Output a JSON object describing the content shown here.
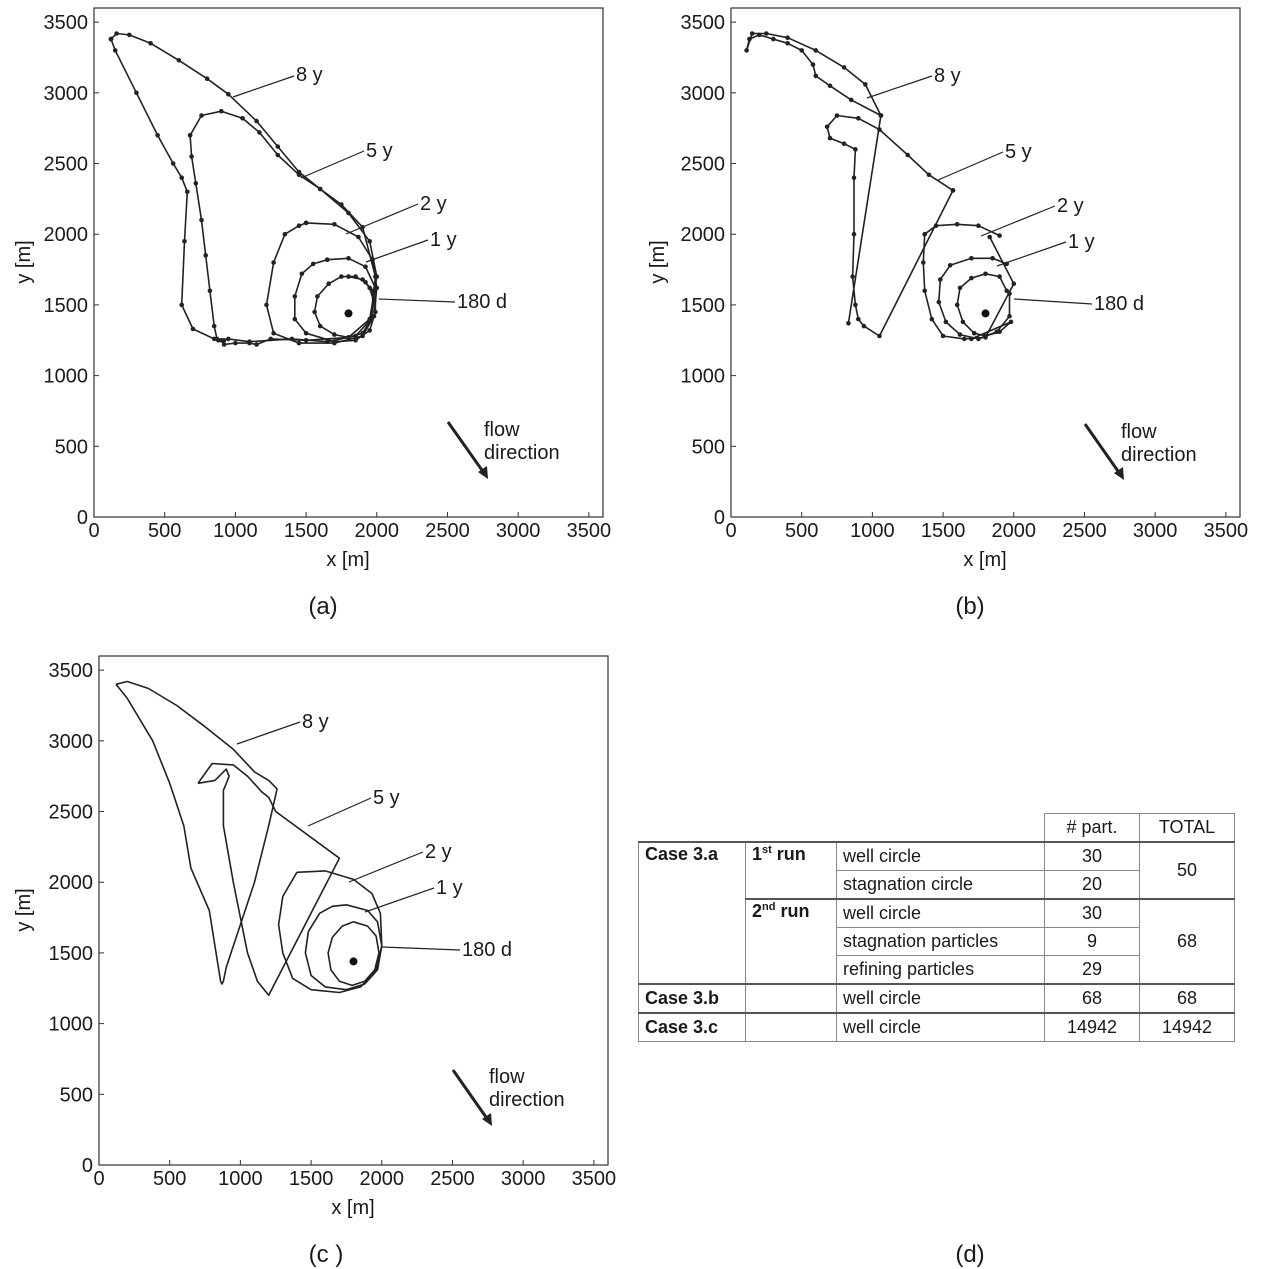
{
  "panels": [
    {
      "id": "a",
      "label": "(a)",
      "xlabel": "x [m]",
      "ylabel": "y [m]",
      "xticks": [
        "0",
        "500",
        "1000",
        "1500",
        "2000",
        "2500",
        "3000",
        "3500"
      ],
      "yticks": [
        "0",
        "500",
        "1000",
        "1500",
        "2000",
        "2500",
        "3000",
        "3500"
      ],
      "flow": [
        "flow",
        "direction"
      ],
      "annotations": [
        "8 y",
        "5 y",
        "2 y",
        "1 y",
        "180 d"
      ]
    },
    {
      "id": "b",
      "label": "(b)",
      "xlabel": "x [m]",
      "ylabel": "y [m]",
      "xticks": [
        "0",
        "500",
        "1000",
        "1500",
        "2000",
        "2500",
        "3000",
        "3500"
      ],
      "yticks": [
        "0",
        "500",
        "1000",
        "1500",
        "2000",
        "2500",
        "3000",
        "3500"
      ],
      "flow": [
        "flow",
        "direction"
      ],
      "annotations": [
        "8 y",
        "5 y",
        "2 y",
        "1 y",
        "180 d"
      ]
    },
    {
      "id": "c",
      "label": "(c )",
      "xlabel": "x [m]",
      "ylabel": "y [m]",
      "xticks": [
        "0",
        "500",
        "1000",
        "1500",
        "2000",
        "2500",
        "3000",
        "3500"
      ],
      "yticks": [
        "0",
        "500",
        "1000",
        "1500",
        "2000",
        "2500",
        "3000",
        "3500"
      ],
      "flow": [
        "flow",
        "direction"
      ],
      "annotations": [
        "8 y",
        "5 y",
        "2 y",
        "1 y",
        "180 d"
      ]
    }
  ],
  "chart_data": [
    {
      "type": "line",
      "panel": "a",
      "xlabel": "x [m]",
      "ylabel": "y [m]",
      "xlim": [
        0,
        3600
      ],
      "ylim": [
        0,
        3600
      ],
      "well": [
        1800,
        1440
      ],
      "series": [
        {
          "name": "180 d",
          "x": [
            1800,
            1900,
            1950,
            1980,
            1960,
            1900,
            1800,
            1700,
            1600,
            1560,
            1580,
            1660,
            1750,
            1850,
            1920,
            1970,
            1980
          ],
          "y": [
            1700,
            1680,
            1620,
            1520,
            1400,
            1300,
            1270,
            1290,
            1350,
            1450,
            1560,
            1650,
            1700,
            1700,
            1660,
            1600,
            1540
          ]
        },
        {
          "name": "1 y",
          "x": [
            1650,
            1800,
            1920,
            1990,
            1990,
            1950,
            1850,
            1700,
            1500,
            1420,
            1420,
            1470,
            1550,
            1650
          ],
          "y": [
            1820,
            1830,
            1770,
            1620,
            1450,
            1320,
            1250,
            1240,
            1300,
            1400,
            1560,
            1720,
            1790,
            1820
          ]
        },
        {
          "name": "2 y",
          "x": [
            1500,
            1700,
            1870,
            1970,
            2000,
            1980,
            1900,
            1700,
            1450,
            1270,
            1220,
            1270,
            1350,
            1450,
            1500
          ],
          "y": [
            2080,
            2070,
            1980,
            1820,
            1620,
            1420,
            1280,
            1230,
            1230,
            1300,
            1500,
            1800,
            2000,
            2060,
            2080
          ]
        },
        {
          "name": "5 y",
          "x": [
            680,
            760,
            900,
            1050,
            1170,
            1300,
            1450,
            1600,
            1750,
            1900,
            1990,
            1960,
            1850,
            1650,
            1400,
            1100,
            950,
            920,
            880,
            870,
            850,
            820,
            790,
            760,
            720,
            690,
            680
          ],
          "y": [
            2700,
            2840,
            2870,
            2820,
            2720,
            2560,
            2420,
            2320,
            2210,
            2050,
            1700,
            1400,
            1280,
            1240,
            1260,
            1240,
            1260,
            1250,
            1250,
            1260,
            1350,
            1600,
            1850,
            2100,
            2360,
            2550,
            2700
          ]
        },
        {
          "name": "8 y",
          "x": [
            120,
            160,
            250,
            400,
            600,
            800,
            950,
            1150,
            1300,
            1450,
            1600,
            1800,
            1950,
            2000,
            1950,
            1800,
            1500,
            1250,
            1150,
            1100,
            1000,
            920,
            900,
            850,
            700,
            620,
            640,
            660,
            620,
            560,
            450,
            300,
            150,
            120
          ],
          "y": [
            3380,
            3420,
            3410,
            3350,
            3230,
            3100,
            2990,
            2800,
            2620,
            2440,
            2320,
            2150,
            1950,
            1700,
            1400,
            1270,
            1250,
            1260,
            1220,
            1230,
            1230,
            1220,
            1250,
            1260,
            1330,
            1500,
            1950,
            2300,
            2400,
            2500,
            2700,
            3000,
            3300,
            3380
          ]
        }
      ]
    },
    {
      "type": "line",
      "panel": "b",
      "xlabel": "x [m]",
      "ylabel": "y [m]",
      "xlim": [
        0,
        3600
      ],
      "ylim": [
        0,
        3600
      ],
      "well": [
        1800,
        1440
      ],
      "series": [
        {
          "name": "180 d",
          "x": [
            1950,
            1900,
            1800,
            1700,
            1620,
            1600,
            1640,
            1720,
            1800,
            1900,
            1980,
            1700
          ],
          "y": [
            1600,
            1700,
            1720,
            1690,
            1620,
            1500,
            1380,
            1300,
            1280,
            1310,
            1380,
            1260
          ]
        },
        {
          "name": "1 y",
          "x": [
            1950,
            1850,
            1700,
            1550,
            1480,
            1470,
            1520,
            1620,
            1750,
            1880,
            1970,
            1970
          ],
          "y": [
            1790,
            1830,
            1830,
            1780,
            1680,
            1520,
            1380,
            1290,
            1260,
            1310,
            1420,
            1580
          ]
        },
        {
          "name": "2 y",
          "x": [
            1900,
            1750,
            1600,
            1450,
            1370,
            1360,
            1370,
            1420,
            1500,
            1650,
            1800,
            2000,
            1830
          ],
          "y": [
            1990,
            2060,
            2070,
            2060,
            2000,
            1800,
            1600,
            1400,
            1280,
            1260,
            1270,
            1650,
            1980
          ]
        },
        {
          "name": "5 y",
          "x": [
            1570,
            1400,
            1250,
            1050,
            900,
            750,
            680,
            700,
            800,
            880,
            870,
            870,
            860,
            880,
            900,
            940,
            1050,
            1570
          ],
          "y": [
            2310,
            2420,
            2560,
            2740,
            2820,
            2840,
            2760,
            2680,
            2640,
            2600,
            2400,
            2000,
            1700,
            1500,
            1400,
            1350,
            1280,
            2310
          ]
        },
        {
          "name": "8 y",
          "x": [
            1060,
            850,
            700,
            600,
            580,
            500,
            400,
            300,
            200,
            130,
            110,
            150,
            250,
            400,
            600,
            800,
            950,
            1060,
            830,
            1060
          ],
          "y": [
            2840,
            2950,
            3050,
            3120,
            3200,
            3300,
            3350,
            3380,
            3410,
            3380,
            3300,
            3420,
            3420,
            3390,
            3300,
            3180,
            3060,
            2840,
            1370,
            2840
          ]
        }
      ]
    },
    {
      "type": "line",
      "panel": "c",
      "xlabel": "x [m]",
      "ylabel": "y [m]",
      "xlim": [
        0,
        3600
      ],
      "ylim": [
        0,
        3600
      ],
      "well": [
        1800,
        1440
      ],
      "series": [
        {
          "name": "180 d",
          "x": [
            1800,
            1900,
            1960,
            1980,
            1950,
            1880,
            1790,
            1700,
            1640,
            1620,
            1650,
            1720,
            1800
          ],
          "y": [
            1720,
            1690,
            1620,
            1500,
            1380,
            1300,
            1270,
            1300,
            1380,
            1500,
            1610,
            1690,
            1720
          ]
        },
        {
          "name": "1 y",
          "x": [
            1750,
            1900,
            1970,
            2000,
            1970,
            1880,
            1750,
            1600,
            1500,
            1460,
            1480,
            1560,
            1650,
            1750
          ],
          "y": [
            1840,
            1800,
            1720,
            1550,
            1380,
            1280,
            1240,
            1260,
            1340,
            1500,
            1650,
            1780,
            1830,
            1840
          ]
        },
        {
          "name": "2 y",
          "x": [
            1400,
            1600,
            1800,
            1930,
            1990,
            2000,
            1960,
            1850,
            1700,
            1500,
            1370,
            1300,
            1270,
            1300,
            1400
          ],
          "y": [
            2070,
            2080,
            2020,
            1920,
            1780,
            1550,
            1380,
            1260,
            1220,
            1240,
            1320,
            1500,
            1700,
            1900,
            2070
          ]
        },
        {
          "name": "5 y",
          "x": [
            700,
            800,
            950,
            1050,
            1150,
            1200,
            1250,
            1700,
            1200,
            1120,
            1050,
            950,
            880,
            880,
            900,
            920,
            900,
            820,
            700
          ],
          "y": [
            2700,
            2840,
            2830,
            2750,
            2640,
            2600,
            2500,
            2170,
            1200,
            1300,
            1500,
            2000,
            2400,
            2650,
            2700,
            2750,
            2800,
            2720,
            2700
          ]
        },
        {
          "name": "8 y",
          "x": [
            120,
            200,
            350,
            550,
            750,
            950,
            1100,
            1200,
            1260,
            1200,
            1100,
            1000,
            900,
            880,
            870,
            860,
            780,
            650,
            600,
            500,
            380,
            200,
            120
          ],
          "y": [
            3400,
            3420,
            3370,
            3250,
            3100,
            2940,
            2780,
            2720,
            2660,
            2400,
            2000,
            1700,
            1400,
            1300,
            1280,
            1300,
            1800,
            2100,
            2400,
            2700,
            3000,
            3300,
            3400
          ]
        }
      ]
    }
  ],
  "table": {
    "label": "(d)",
    "header": {
      "part": "# part.",
      "total": "TOTAL"
    },
    "case_a": "Case 3.a",
    "case_b": "Case 3.b",
    "case_c": "Case 3.c",
    "run1": {
      "n": "1",
      "sup": "st",
      "word": " run"
    },
    "run2": {
      "n": "2",
      "sup": "nd",
      "word": " run"
    },
    "rows": {
      "a1_well": {
        "desc": "well circle",
        "part": "30"
      },
      "a1_stag": {
        "desc": "stagnation circle",
        "part": "20"
      },
      "a1_total": "50",
      "a2_well": {
        "desc": "well circle",
        "part": "30"
      },
      "a2_stag": {
        "desc": "stagnation particles",
        "part": "9"
      },
      "a2_ref": {
        "desc": "refining particles",
        "part": "29"
      },
      "a2_total": "68",
      "b": {
        "desc": "well circle",
        "part": "68",
        "total": "68"
      },
      "c": {
        "desc": "well circle",
        "part": "14942",
        "total": "14942"
      }
    }
  }
}
